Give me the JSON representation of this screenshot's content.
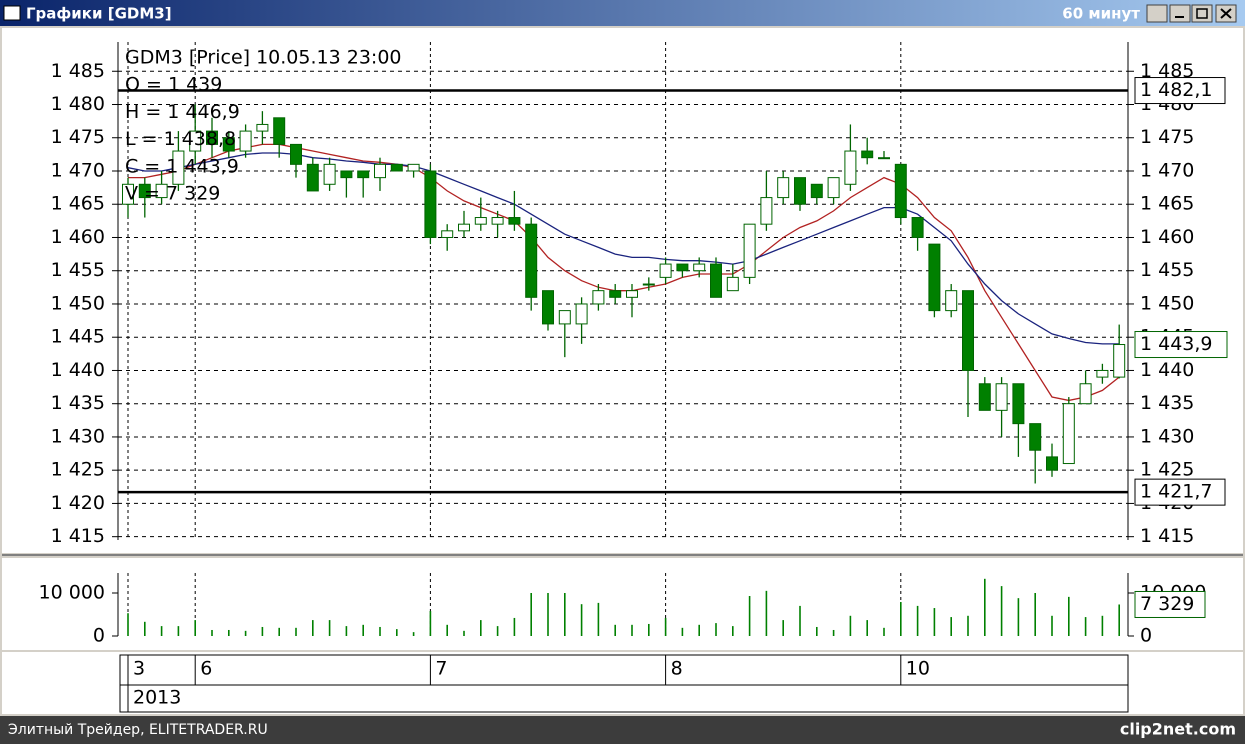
{
  "window": {
    "title": "Графики [GDM3]",
    "period": "60 минут",
    "footer": "Элитный Трейдер, ELITETRADER.RU",
    "watermark": "clip2net.com"
  },
  "chart_data": {
    "type": "candlestick",
    "info_lines": [
      "GDM3 [Price] 10.05.13 23:00",
      "O = 1 439",
      "H = 1 446,9",
      "L = 1 438,8",
      "C = 1 443,9",
      "V = 7 329"
    ],
    "categories": [
      "3",
      null,
      null,
      null,
      "6",
      null,
      null,
      null,
      null,
      null,
      null,
      null,
      null,
      null,
      null,
      null,
      null,
      null,
      "7",
      null,
      null,
      null,
      null,
      null,
      null,
      null,
      null,
      null,
      null,
      null,
      null,
      null,
      "8",
      null,
      null,
      null,
      null,
      null,
      null,
      null,
      null,
      null,
      null,
      null,
      null,
      null,
      "10",
      null,
      null,
      null,
      null,
      null,
      null,
      null,
      null,
      null,
      null,
      null,
      null,
      null
    ],
    "year": "2013",
    "open": [
      1465,
      1468,
      1466,
      1468,
      1473,
      1476,
      1475,
      1473,
      1476,
      1478,
      1474,
      1471,
      1468,
      1470,
      1470,
      1469,
      1471,
      1470,
      1470,
      1460,
      1461,
      1462,
      1462,
      1463,
      1462,
      1452,
      1447,
      1447,
      1450,
      1452,
      1451,
      1453,
      1454,
      1456,
      1455,
      1456,
      1452,
      1454,
      1462,
      1466,
      1469,
      1468,
      1466,
      1468,
      1473,
      1472,
      1471,
      1463,
      1459,
      1449,
      1452,
      1438,
      1434,
      1438,
      1432,
      1427,
      1426,
      1435,
      1439,
      1439
    ],
    "high": [
      1469,
      1469,
      1470,
      1476,
      1480,
      1478,
      1476,
      1477,
      1479,
      1478,
      1474,
      1472,
      1472,
      1470,
      1470,
      1472,
      1471,
      1471,
      1471,
      1462,
      1464,
      1466,
      1464,
      1467,
      1463,
      1452,
      1449,
      1451,
      1453,
      1453,
      1453,
      1454,
      1457,
      1456,
      1457,
      1457,
      1456,
      1462,
      1470,
      1470,
      1469,
      1468,
      1469,
      1477,
      1475,
      1473,
      1471,
      1463,
      1459,
      1453,
      1452,
      1439,
      1439,
      1438,
      1432,
      1429,
      1436,
      1440,
      1441,
      1446.9
    ],
    "low": [
      1463,
      1463,
      1465,
      1467,
      1471,
      1472,
      1472,
      1472,
      1474,
      1472,
      1469,
      1467,
      1467,
      1466,
      1466,
      1467,
      1470,
      1469,
      1459,
      1458,
      1460,
      1461,
      1460,
      1461,
      1449,
      1446,
      1442,
      1444,
      1449,
      1450,
      1448,
      1452,
      1453,
      1454,
      1454,
      1451,
      1452,
      1453,
      1461,
      1465,
      1464,
      1465,
      1465,
      1467,
      1471,
      1472,
      1462,
      1458,
      1448,
      1448,
      1433,
      1434,
      1430,
      1427,
      1423,
      1424,
      1426,
      1435,
      1438,
      1438.8
    ],
    "close": [
      1468,
      1466,
      1468,
      1473,
      1476,
      1474,
      1473,
      1476,
      1477,
      1474,
      1471,
      1467,
      1471,
      1469,
      1469,
      1471,
      1470,
      1471,
      1460,
      1461,
      1462,
      1463,
      1463,
      1462,
      1451,
      1447,
      1449,
      1450,
      1452,
      1451,
      1452,
      1453,
      1456,
      1455,
      1456,
      1451,
      1454,
      1462,
      1466,
      1469,
      1465,
      1466,
      1469,
      1473,
      1472,
      1472,
      1463,
      1460,
      1449,
      1452,
      1440,
      1434,
      1438,
      1432,
      1428,
      1425,
      1435,
      1438,
      1440,
      1443.9
    ],
    "up_color": "#ffffff",
    "down_color": "#008000",
    "wick_color": "#006400",
    "overlays": [
      {
        "color": "#b22222",
        "values": [
          1469,
          1469,
          1469.5,
          1470,
          1471,
          1472,
          1473,
          1473.5,
          1474,
          1474,
          1473.5,
          1473,
          1472.5,
          1472,
          1471.5,
          1471.3,
          1471,
          1470.5,
          1469,
          1467,
          1465.5,
          1464.5,
          1463.5,
          1462.5,
          1460,
          1457,
          1455,
          1453.5,
          1452.5,
          1452,
          1452,
          1452.5,
          1453,
          1454,
          1454.5,
          1454.5,
          1454.5,
          1456,
          1458,
          1460,
          1461.5,
          1462.5,
          1464,
          1466,
          1467.5,
          1469,
          1468,
          1466,
          1463,
          1461,
          1457,
          1452,
          1448,
          1444,
          1440,
          1436,
          1435.5,
          1436,
          1437,
          1439
        ]
      },
      {
        "color": "#1a237e",
        "values": [
          1470.5,
          1470,
          1470,
          1470.5,
          1471,
          1471.5,
          1472,
          1472.5,
          1472.7,
          1472.7,
          1472.5,
          1472,
          1471.8,
          1471.5,
          1471.3,
          1471,
          1471,
          1470.7,
          1470,
          1469,
          1468,
          1467,
          1466,
          1465,
          1463.5,
          1462,
          1460.5,
          1459.5,
          1458.5,
          1457.5,
          1457,
          1457,
          1456.7,
          1456.5,
          1456.5,
          1456.3,
          1456,
          1456.5,
          1457.5,
          1458.5,
          1459.5,
          1460.5,
          1461.5,
          1462.5,
          1463.5,
          1464.5,
          1464.5,
          1463.5,
          1461.5,
          1459.5,
          1456,
          1453,
          1450.5,
          1448.5,
          1447,
          1445.5,
          1444.8,
          1444.2,
          1444,
          1444
        ]
      }
    ],
    "ylim": [
      1414.5,
      1489.4
    ],
    "yticks": [
      {
        "value": 1415,
        "label": "1 415"
      },
      {
        "value": 1420,
        "label": "1 420"
      },
      {
        "value": 1425,
        "label": "1 425"
      },
      {
        "value": 1430,
        "label": "1 430"
      },
      {
        "value": 1435,
        "label": "1 435"
      },
      {
        "value": 1440,
        "label": "1 440"
      },
      {
        "value": 1445,
        "label": "1 445"
      },
      {
        "value": 1450,
        "label": "1 450"
      },
      {
        "value": 1455,
        "label": "1 455"
      },
      {
        "value": 1460,
        "label": "1 460"
      },
      {
        "value": 1465,
        "label": "1 465"
      },
      {
        "value": 1470,
        "label": "1 470"
      },
      {
        "value": 1475,
        "label": "1 475"
      },
      {
        "value": 1480,
        "label": "1 480"
      },
      {
        "value": 1485,
        "label": "1 485"
      }
    ],
    "grid": true,
    "levels": [
      {
        "value": 1482.1,
        "label": "1 482,1"
      },
      {
        "value": 1421.7,
        "label": "1 421,7"
      }
    ],
    "last_price": {
      "value": 1443.9,
      "label": "1 443,9"
    },
    "volume": {
      "color": "#008000",
      "values": [
        5300,
        3300,
        2300,
        2300,
        3700,
        1400,
        1400,
        1200,
        2100,
        1900,
        1900,
        3700,
        3700,
        2300,
        2600,
        2100,
        1600,
        900,
        5800,
        2600,
        1200,
        3700,
        2300,
        4200,
        10000,
        10000,
        10000,
        7400,
        7700,
        2600,
        2600,
        2800,
        4200,
        1900,
        2600,
        3000,
        2300,
        9300,
        10500,
        3700,
        7000,
        2100,
        1400,
        4700,
        3700,
        1900,
        7900,
        7000,
        6500,
        4400,
        4700,
        13300,
        11600,
        8800,
        10000,
        4700,
        9100,
        4400,
        4700,
        7329
      ],
      "ylim": [
        0,
        14650
      ],
      "yticks": [
        0,
        {
          "value": 10000,
          "label": "10 000"
        }
      ],
      "last": {
        "value": 7329,
        "label": "7 329"
      }
    }
  }
}
